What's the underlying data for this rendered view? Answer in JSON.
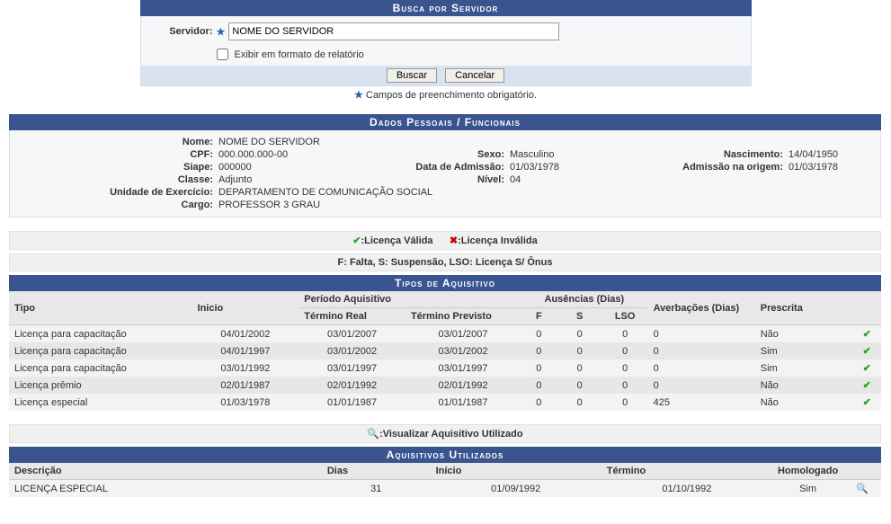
{
  "colors": {
    "header_bg": "#39548f",
    "header_text": "#ffffff",
    "body_bg": "#f5f7f9",
    "btnrow_bg": "#d8e2f0",
    "row_odd": "#f3f3f3",
    "row_even": "#e7e7e7",
    "legend_bg": "#f0f0f0",
    "check_color": "#2a9d2a",
    "magnify_color": "#d88a00"
  },
  "search": {
    "title": "Busca por Servidor",
    "label": "Servidor:",
    "value": "NOME DO SERVIDOR",
    "checkbox_label": "Exibir em formato de relatório",
    "btn_search": "Buscar",
    "btn_cancel": "Cancelar",
    "note_star": "★",
    "note": "Campos de preenchimento obrigatório."
  },
  "dados": {
    "title": "Dados Pessoais / Funcionais",
    "nome_k": "Nome:",
    "nome_v": "NOME DO SERVIDOR",
    "cpf_k": "CPF:",
    "cpf_v": "000.000.000-00",
    "sexo_k": "Sexo:",
    "sexo_v": "Masculino",
    "nasc_k": "Nascimento:",
    "nasc_v": "14/04/1950",
    "siape_k": "Siape:",
    "siape_v": "000000",
    "adm_k": "Data de Admissão:",
    "adm_v": "01/03/1978",
    "admorig_k": "Admissão na origem:",
    "admorig_v": "01/03/1978",
    "classe_k": "Classe:",
    "classe_v": "Adjunto",
    "nivel_k": "Nível:",
    "nivel_v": "04",
    "unidade_k": "Unidade de Exercício:",
    "unidade_v": "DEPARTAMENTO DE COMUNICAÇÃO SOCIAL",
    "cargo_k": "Cargo:",
    "cargo_v": "PROFESSOR 3 GRAU"
  },
  "legend1": {
    "valid": ":Licença Válida",
    "invalid": ":Licença Inválida",
    "check": "✔",
    "x": "✖"
  },
  "legend2": "F: Falta, S: Suspensão, LSO: Licença S/ Ônus",
  "tipos": {
    "title": "Tipos de Aquisitivo",
    "headers": {
      "tipo": "Tipo",
      "inicio": "Inicio",
      "periodo": "Período Aquisitivo",
      "term_real": "Término Real",
      "term_prev": "Término Previsto",
      "f": "F",
      "s": "S",
      "lso": "LSO",
      "aus": "Ausências (Dias)",
      "averb": "Averbações (Dias)",
      "presc": "Prescrita"
    },
    "rows": [
      {
        "tipo": "Licença para capacitação",
        "inicio": "04/01/2002",
        "treal": "03/01/2007",
        "tprev": "03/01/2007",
        "f": "0",
        "s": "0",
        "lso": "0",
        "averb": "0",
        "presc": "Não",
        "valid": "✔"
      },
      {
        "tipo": "Licença para capacitação",
        "inicio": "04/01/1997",
        "treal": "03/01/2002",
        "tprev": "03/01/2002",
        "f": "0",
        "s": "0",
        "lso": "0",
        "averb": "0",
        "presc": "Sim",
        "valid": "✔"
      },
      {
        "tipo": "Licença para capacitação",
        "inicio": "03/01/1992",
        "treal": "03/01/1997",
        "tprev": "03/01/1997",
        "f": "0",
        "s": "0",
        "lso": "0",
        "averb": "0",
        "presc": "Sim",
        "valid": "✔"
      },
      {
        "tipo": "Licença prêmio",
        "inicio": "02/01/1987",
        "treal": "02/01/1992",
        "tprev": "02/01/1992",
        "f": "0",
        "s": "0",
        "lso": "0",
        "averb": "0",
        "presc": "Não",
        "valid": "✔"
      },
      {
        "tipo": "Licença especial",
        "inicio": "01/03/1978",
        "treal": "01/01/1987",
        "tprev": "01/01/1987",
        "f": "0",
        "s": "0",
        "lso": "0",
        "averb": "425",
        "presc": "Não",
        "valid": "✔"
      }
    ]
  },
  "visualizar": {
    "icon": "🔍",
    "label": ":Visualizar Aquisitivo Utilizado"
  },
  "util": {
    "title": "Aquisitivos Utilizados",
    "headers": {
      "desc": "Descrição",
      "dias": "Dias",
      "inicio": "Início",
      "termino": "Término",
      "homo": "Homologado"
    },
    "rows": [
      {
        "desc": "LICENÇA ESPECIAL",
        "dias": "31",
        "inicio": "01/09/1992",
        "termino": "01/10/1992",
        "homo": "Sim",
        "icon": "🔍"
      }
    ]
  }
}
